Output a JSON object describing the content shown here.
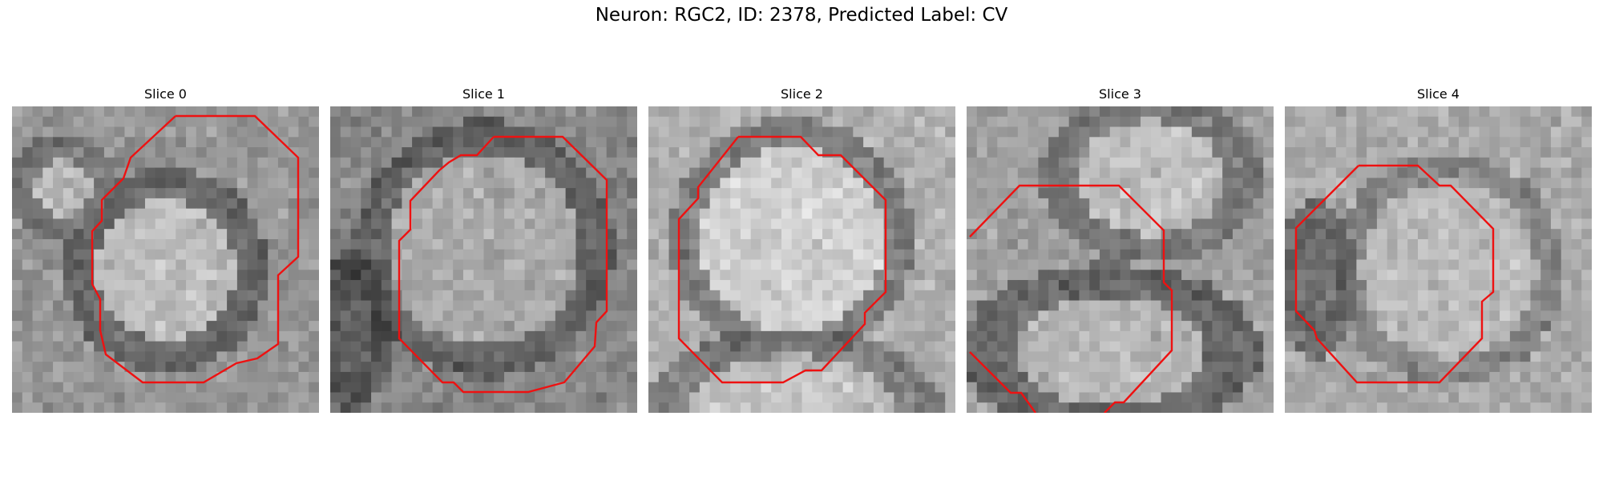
{
  "figure": {
    "title": "Neuron: RGC2, ID: 2378, Predicted Label: CV"
  },
  "panels": [
    {
      "title": "Slice 0"
    },
    {
      "title": "Slice 1"
    },
    {
      "title": "Slice 2"
    },
    {
      "title": "Slice 3"
    },
    {
      "title": "Slice 4"
    }
  ],
  "colors": {
    "contour": "#ee1111",
    "background": "#ffffff",
    "colormap": "grayscale"
  }
}
